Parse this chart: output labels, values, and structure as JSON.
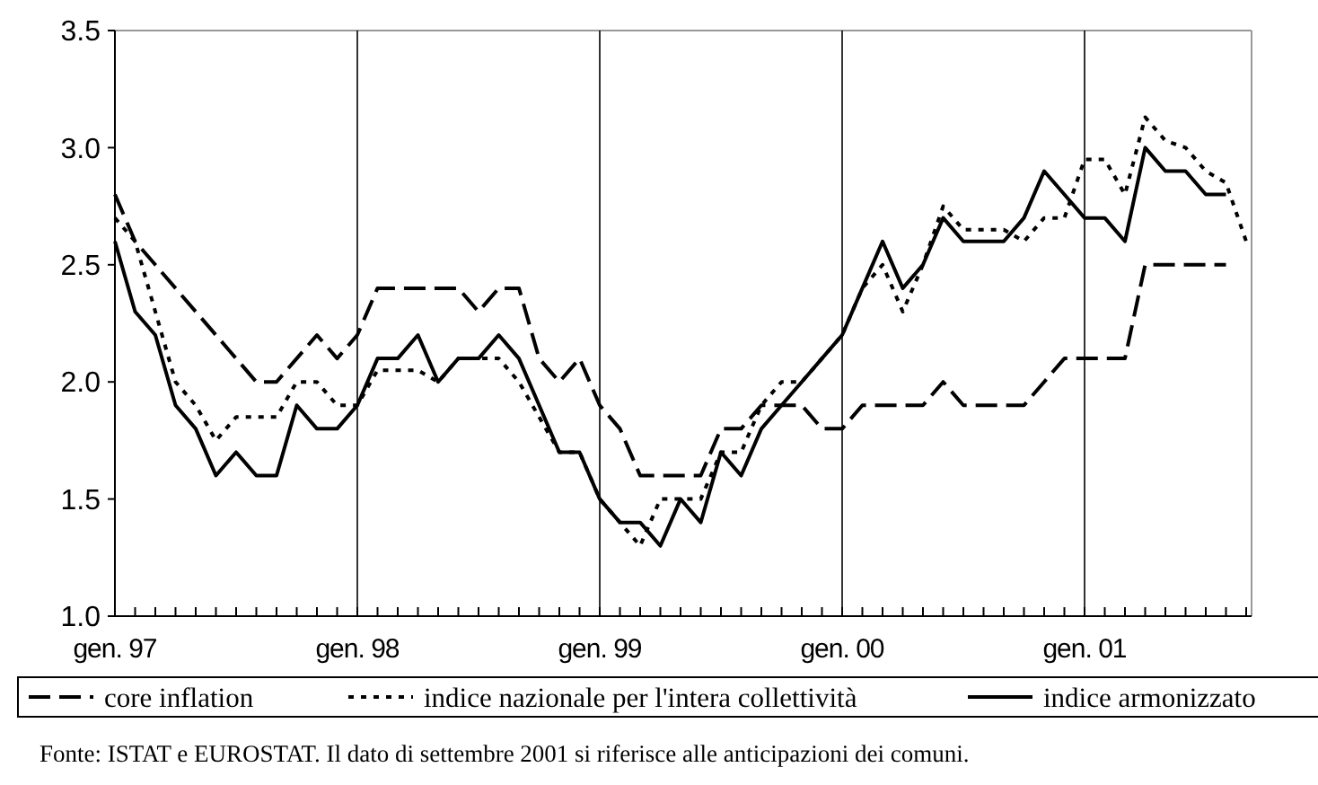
{
  "chart_data": {
    "type": "line",
    "categories": [
      "gen. 97",
      null,
      null,
      null,
      null,
      null,
      null,
      null,
      null,
      null,
      null,
      null,
      "gen. 98",
      null,
      null,
      null,
      null,
      null,
      null,
      null,
      null,
      null,
      null,
      null,
      "gen. 99",
      null,
      null,
      null,
      null,
      null,
      null,
      null,
      null,
      null,
      null,
      null,
      "gen. 00",
      null,
      null,
      null,
      null,
      null,
      null,
      null,
      null,
      null,
      null,
      null,
      "gen. 01",
      null,
      null,
      null,
      null,
      null,
      null,
      null,
      null
    ],
    "series": [
      {
        "name": "core inflation",
        "color": "#000000",
        "line_style": "dashed",
        "values": [
          2.8,
          2.6,
          2.5,
          2.4,
          2.3,
          2.2,
          2.1,
          2.0,
          2.0,
          2.1,
          2.2,
          2.1,
          2.2,
          2.4,
          2.4,
          2.4,
          2.4,
          2.4,
          2.3,
          2.4,
          2.4,
          2.1,
          2.0,
          2.1,
          1.9,
          1.8,
          1.6,
          1.6,
          1.6,
          1.6,
          1.8,
          1.8,
          1.9,
          1.9,
          1.9,
          1.8,
          1.8,
          1.9,
          1.9,
          1.9,
          1.9,
          2.0,
          1.9,
          1.9,
          1.9,
          1.9,
          2.0,
          2.1,
          2.1,
          2.1,
          2.1,
          2.5,
          2.5,
          2.5,
          2.5,
          2.5,
          null
        ]
      },
      {
        "name": "indice nazionale per l'intera collettività",
        "color": "#000000",
        "line_style": "dotted",
        "values": [
          2.7,
          2.6,
          2.3,
          2.0,
          1.9,
          1.75,
          1.85,
          1.85,
          1.85,
          2.0,
          2.0,
          1.9,
          1.9,
          2.05,
          2.05,
          2.05,
          2.0,
          2.1,
          2.1,
          2.1,
          2.0,
          1.85,
          1.7,
          1.7,
          1.5,
          1.4,
          1.3,
          1.5,
          1.5,
          1.5,
          1.7,
          1.7,
          1.9,
          2.0,
          2.0,
          2.1,
          2.2,
          2.4,
          2.5,
          2.3,
          2.5,
          2.75,
          2.65,
          2.65,
          2.65,
          2.6,
          2.7,
          2.7,
          2.95,
          2.95,
          2.8,
          3.13,
          3.03,
          3.0,
          2.9,
          2.85,
          2.6
        ]
      },
      {
        "name": "indice armonizzato",
        "color": "#000000",
        "line_style": "solid",
        "values": [
          2.6,
          2.3,
          2.2,
          1.9,
          1.8,
          1.6,
          1.7,
          1.6,
          1.6,
          1.9,
          1.8,
          1.8,
          1.9,
          2.1,
          2.1,
          2.2,
          2.0,
          2.1,
          2.1,
          2.2,
          2.1,
          1.9,
          1.7,
          1.7,
          1.5,
          1.4,
          1.4,
          1.3,
          1.5,
          1.4,
          1.7,
          1.6,
          1.8,
          1.9,
          2.0,
          2.1,
          2.2,
          2.4,
          2.6,
          2.4,
          2.5,
          2.7,
          2.6,
          2.6,
          2.6,
          2.7,
          2.9,
          2.8,
          2.7,
          2.7,
          2.6,
          3.0,
          2.9,
          2.9,
          2.8,
          2.8,
          null
        ]
      }
    ],
    "ylim": [
      1.0,
      3.5
    ],
    "yticks": [
      {
        "value": 1.0,
        "label": "1.0"
      },
      {
        "value": 1.5,
        "label": "1.5"
      },
      {
        "value": 2.0,
        "label": "2.0"
      },
      {
        "value": 2.5,
        "label": "2.5"
      },
      {
        "value": 3.0,
        "label": "3.0"
      },
      {
        "value": 3.5,
        "label": "3.5"
      }
    ],
    "grid": "x",
    "legend": "bottom",
    "marker": "none",
    "annotations": [
      "Fonte: ISTAT e EUROSTAT. Il dato di settembre 2001 si riferisce alle anticipazioni dei comuni."
    ]
  }
}
